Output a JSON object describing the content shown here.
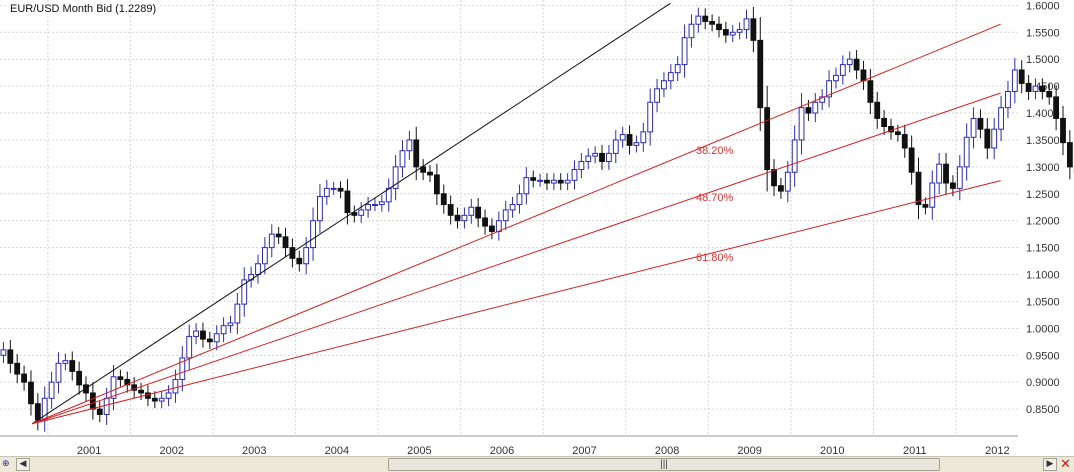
{
  "chart_data": {
    "type": "candlestick",
    "title": "EUR/USD Month Bid (1.2289)",
    "ylim": [
      0.8,
      1.61
    ],
    "xlim": [
      2000.42,
      2012.75
    ],
    "y_ticks": [
      "1.6000",
      "1.5500",
      "1.5000",
      "1.4500",
      "1.4000",
      "1.3500",
      "1.3000",
      "1.2500",
      "1.2000",
      "1.1500",
      "1.1000",
      "1.0500",
      "1.0000",
      "0.9500",
      "0.9000",
      "0.8500"
    ],
    "x_ticks": [
      "2001",
      "2002",
      "2003",
      "2004",
      "2005",
      "2006",
      "2007",
      "2008",
      "2009",
      "2010",
      "2011",
      "2012"
    ],
    "grid": true,
    "colors": {
      "up": "#2a2ab8",
      "down": "#111111",
      "trend": "#111111",
      "fan": "#d42020",
      "fib_label": "#e03030"
    },
    "fib_labels": [
      "38.20%",
      "48.70%",
      "61.80%"
    ],
    "fan_lines": [
      {
        "from": [
          2000.81,
          0.8228
        ],
        "to": [
          2008.54,
          1.6038
        ],
        "color": "#111111"
      },
      {
        "from": [
          2000.81,
          0.8228
        ],
        "to": [
          2012.54,
          1.5651
        ],
        "color": "#d42020"
      },
      {
        "from": [
          2000.81,
          0.8228
        ],
        "to": [
          2012.54,
          1.4372
        ],
        "color": "#d42020"
      },
      {
        "from": [
          2000.81,
          0.8228
        ],
        "to": [
          2012.54,
          1.2745
        ],
        "color": "#d42020"
      }
    ],
    "closes": [
      0.96,
      0.935,
      0.915,
      0.9,
      0.86,
      0.83,
      0.87,
      0.9,
      0.935,
      0.94,
      0.92,
      0.895,
      0.88,
      0.85,
      0.84,
      0.87,
      0.91,
      0.905,
      0.895,
      0.885,
      0.88,
      0.87,
      0.865,
      0.87,
      0.88,
      0.905,
      0.945,
      0.985,
      0.995,
      0.98,
      0.975,
      0.99,
      1.005,
      1.01,
      1.045,
      1.09,
      1.1,
      1.12,
      1.15,
      1.175,
      1.17,
      1.15,
      1.13,
      1.12,
      1.15,
      1.2,
      1.245,
      1.26,
      1.26,
      1.255,
      1.215,
      1.21,
      1.22,
      1.23,
      1.23,
      1.235,
      1.26,
      1.3,
      1.33,
      1.35,
      1.3,
      1.29,
      1.285,
      1.25,
      1.23,
      1.21,
      1.2,
      1.21,
      1.225,
      1.205,
      1.19,
      1.18,
      1.2,
      1.22,
      1.23,
      1.25,
      1.28,
      1.275,
      1.275,
      1.27,
      1.275,
      1.27,
      1.275,
      1.295,
      1.31,
      1.32,
      1.325,
      1.31,
      1.325,
      1.35,
      1.36,
      1.34,
      1.345,
      1.365,
      1.42,
      1.445,
      1.46,
      1.475,
      1.49,
      1.54,
      1.565,
      1.58,
      1.57,
      1.565,
      1.555,
      1.545,
      1.55,
      1.555,
      1.575,
      1.535,
      1.41,
      1.295,
      1.265,
      1.255,
      1.29,
      1.35,
      1.41,
      1.4,
      1.42,
      1.43,
      1.46,
      1.47,
      1.49,
      1.5,
      1.48,
      1.46,
      1.42,
      1.39,
      1.375,
      1.365,
      1.36,
      1.335,
      1.29,
      1.23,
      1.225,
      1.27,
      1.305,
      1.27,
      1.26,
      1.3,
      1.355,
      1.39,
      1.37,
      1.335,
      1.37,
      1.41,
      1.44,
      1.48,
      1.455,
      1.44,
      1.45,
      1.44,
      1.43,
      1.39,
      1.345,
      1.3,
      1.29,
      1.305,
      1.325,
      1.33,
      1.335,
      1.33,
      1.31,
      1.285,
      1.245,
      1.235
    ]
  },
  "ui": {
    "zoom_icon": "magnifier-icon",
    "close_icon": "close-icon",
    "thumb_grip": "|||"
  }
}
